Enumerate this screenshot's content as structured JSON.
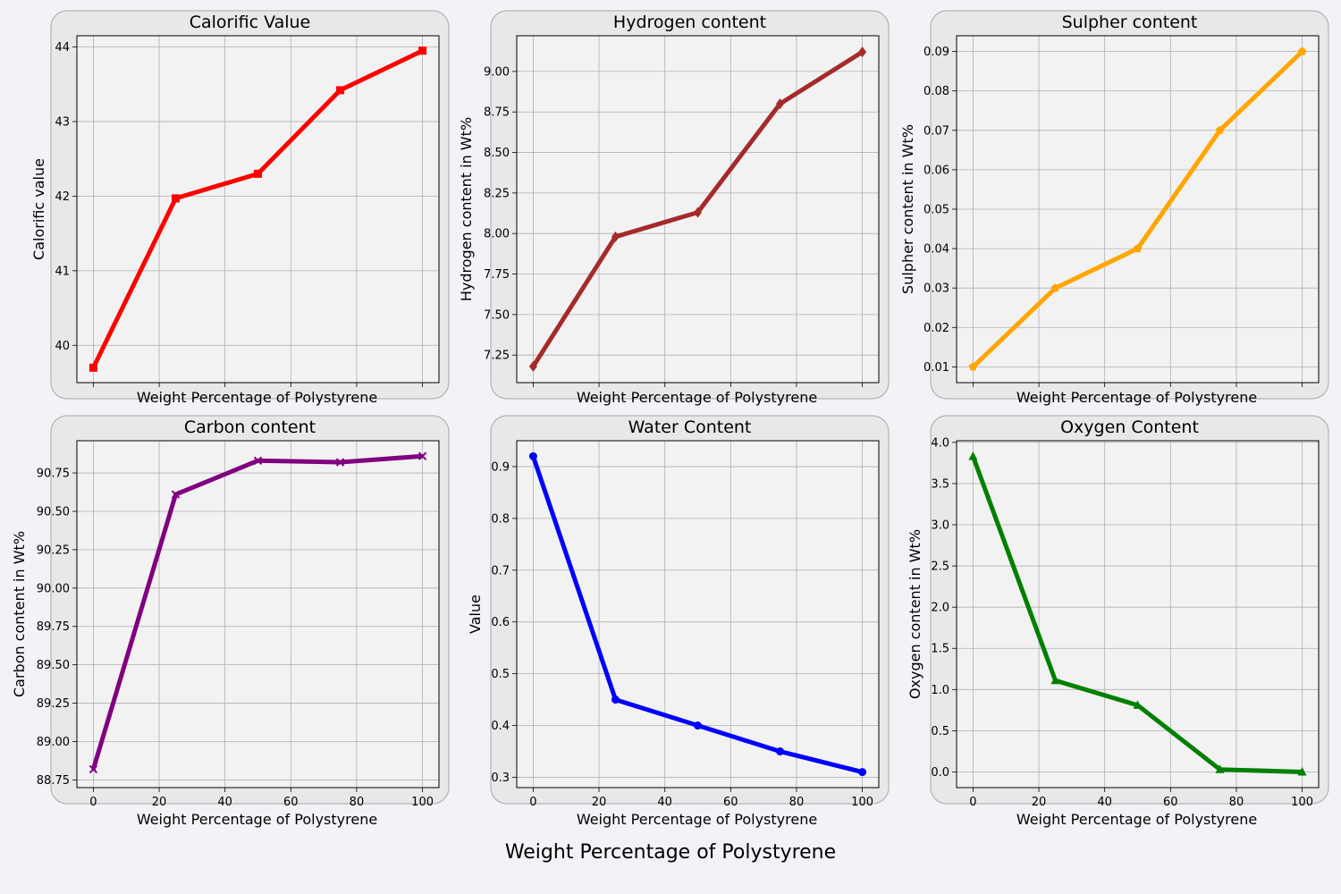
{
  "figure": {
    "supxlabel": "Weight Percentage of Polystyrene"
  },
  "chart_data": [
    {
      "type": "line",
      "title": "Calorific Value",
      "xlabel": "Weight Percentage of Polystyrene",
      "ylabel": "Calorific value",
      "x": [
        0,
        25,
        50,
        75,
        100
      ],
      "series": [
        {
          "values": [
            39.7,
            41.97,
            42.3,
            43.42,
            43.95
          ],
          "color": "#ff0000",
          "marker": "square"
        }
      ],
      "xlim": [
        -5,
        105
      ],
      "ylim": [
        39.5,
        44.15
      ],
      "xticks": [
        0,
        20,
        40,
        60,
        80,
        100
      ],
      "yticks": [
        40,
        41,
        42,
        43,
        44
      ],
      "show_x_tick_labels": false,
      "grid": true
    },
    {
      "type": "line",
      "title": "Hydrogen content",
      "xlabel": "Weight Percentage of Polystyrene",
      "ylabel": "Hydrogen content in Wt%",
      "x": [
        0,
        25,
        50,
        75,
        100
      ],
      "series": [
        {
          "values": [
            7.18,
            7.98,
            8.13,
            8.8,
            9.12
          ],
          "color": "#a52a2a",
          "marker": "diamond"
        }
      ],
      "xlim": [
        -5,
        105
      ],
      "ylim": [
        7.08,
        9.22
      ],
      "xticks": [
        0,
        20,
        40,
        60,
        80,
        100
      ],
      "yticks": [
        "7.25",
        "7.50",
        "7.75",
        "8.00",
        "8.25",
        "8.50",
        "8.75",
        "9.00"
      ],
      "show_x_tick_labels": false,
      "grid": true
    },
    {
      "type": "line",
      "title": "Sulpher content",
      "xlabel": "Weight Percentage of Polystyrene",
      "ylabel": "Sulpher content in Wt%",
      "x": [
        0,
        25,
        50,
        75,
        100
      ],
      "series": [
        {
          "values": [
            0.01,
            0.03,
            0.04,
            0.07,
            0.09
          ],
          "color": "#ffa500",
          "marker": "pentagon"
        }
      ],
      "xlim": [
        -5,
        105
      ],
      "ylim": [
        0.006,
        0.094
      ],
      "xticks": [
        0,
        20,
        40,
        60,
        80,
        100
      ],
      "yticks": [
        "0.01",
        "0.02",
        "0.03",
        "0.04",
        "0.05",
        "0.06",
        "0.07",
        "0.08",
        "0.09"
      ],
      "show_x_tick_labels": false,
      "grid": true
    },
    {
      "type": "line",
      "title": "Carbon content",
      "xlabel": "Weight Percentage of Polystyrene",
      "ylabel": "Carbon content in Wt%",
      "x": [
        0,
        25,
        50,
        75,
        100
      ],
      "series": [
        {
          "values": [
            88.82,
            90.61,
            90.83,
            90.82,
            90.86
          ],
          "color": "#800080",
          "marker": "x"
        }
      ],
      "xlim": [
        -5,
        105
      ],
      "ylim": [
        88.7,
        90.96
      ],
      "xticks": [
        "0",
        "20",
        "40",
        "60",
        "80",
        "100"
      ],
      "yticks": [
        "88.75",
        "89.00",
        "89.25",
        "89.50",
        "89.75",
        "90.00",
        "90.25",
        "90.50",
        "90.75"
      ],
      "show_x_tick_labels": true,
      "grid": true
    },
    {
      "type": "line",
      "title": "Water Content",
      "xlabel": "Weight Percentage of Polystyrene",
      "ylabel": "Value",
      "x": [
        0,
        25,
        50,
        75,
        100
      ],
      "series": [
        {
          "values": [
            0.92,
            0.45,
            0.4,
            0.35,
            0.31
          ],
          "color": "#0000ff",
          "marker": "circle"
        }
      ],
      "xlim": [
        -5,
        105
      ],
      "ylim": [
        0.28,
        0.95
      ],
      "xticks": [
        "0",
        "20",
        "40",
        "60",
        "80",
        "100"
      ],
      "yticks": [
        "0.3",
        "0.4",
        "0.5",
        "0.6",
        "0.7",
        "0.8",
        "0.9"
      ],
      "show_x_tick_labels": true,
      "grid": true
    },
    {
      "type": "line",
      "title": "Oxygen Content",
      "xlabel": "Weight Percentage of Polystyrene",
      "ylabel": "Oxygen content in Wt%",
      "x": [
        0,
        25,
        50,
        75,
        100
      ],
      "series": [
        {
          "values": [
            3.83,
            1.11,
            0.81,
            0.03,
            0.0
          ],
          "color": "#008000",
          "marker": "triangle"
        }
      ],
      "xlim": [
        -5,
        105
      ],
      "ylim": [
        -0.19,
        4.02
      ],
      "xticks": [
        "0",
        "20",
        "40",
        "60",
        "80",
        "100"
      ],
      "yticks": [
        "0.0",
        "0.5",
        "1.0",
        "1.5",
        "2.0",
        "2.5",
        "3.0",
        "3.5",
        "4.0"
      ],
      "show_x_tick_labels": true,
      "grid": true
    }
  ]
}
